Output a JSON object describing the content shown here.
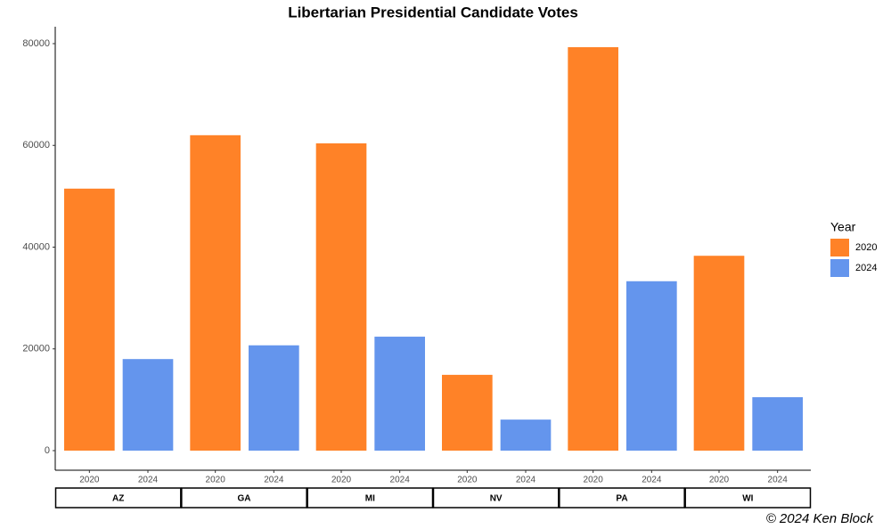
{
  "chart_data": {
    "type": "bar",
    "title": "Libertarian Presidential Candidate Votes",
    "categories": [
      "AZ",
      "GA",
      "MI",
      "NV",
      "PA",
      "WI"
    ],
    "series": [
      {
        "name": "2020",
        "color": "#ff8227",
        "values": [
          51500,
          62000,
          60400,
          14900,
          79300,
          38300
        ]
      },
      {
        "name": "2024",
        "color": "#6495ed",
        "values": [
          18000,
          20700,
          22400,
          6100,
          33300,
          10500
        ]
      }
    ],
    "legend_title": "Year",
    "legend": "right",
    "ylim": [
      0,
      80000
    ],
    "yticks": [
      0,
      20000,
      40000,
      60000,
      80000
    ],
    "caption": "© 2024 Ken Block"
  }
}
